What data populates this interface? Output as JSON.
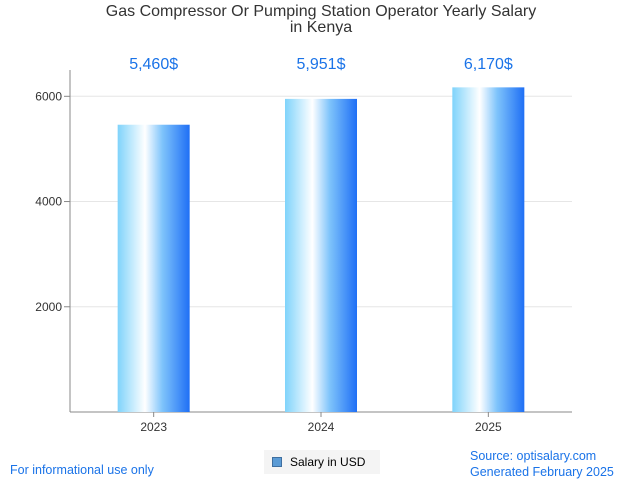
{
  "chart_data": {
    "type": "bar",
    "title_line1": "Gas Compressor Or Pumping Station Operator Yearly Salary",
    "title_line2": "in Kenya",
    "categories": [
      "2023",
      "2024",
      "2025"
    ],
    "values": [
      5460,
      5951,
      6170
    ],
    "value_labels": [
      "5,460$",
      "5,951$",
      "6,170$"
    ],
    "y_ticks": [
      "2000",
      "4000",
      "6000"
    ],
    "y_tick_values": [
      2000,
      4000,
      6000
    ],
    "ylim": [
      0,
      6500
    ],
    "grid": true,
    "legend": "Salary in USD",
    "legend_position": "bottom-center",
    "xlabel": "",
    "ylabel": ""
  },
  "colors": {
    "bar_light": "#e8f6ff",
    "bar_cyan": "#7fd3fb",
    "bar_blue": "#1f6ff5",
    "value_label": "#1a73e8",
    "axis": "#888888",
    "grid": "#e6e6e6"
  },
  "footer": {
    "disclaimer": "For informational use only",
    "source": "Source: optisalary.com",
    "generated": "Generated February 2025"
  }
}
